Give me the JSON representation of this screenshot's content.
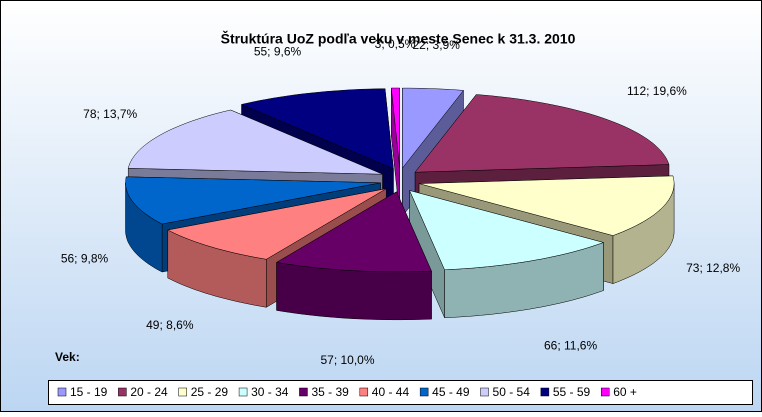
{
  "chart_data": {
    "type": "pie3d",
    "title": "Štruktúra UoZ podľa veku v meste Senec k 31.3. 2010",
    "legend_title": "Vek:",
    "categories": [
      "15 - 19",
      "20 - 24",
      "25 - 29",
      "30 - 34",
      "35 - 39",
      "40 - 44",
      "45 - 49",
      "50 - 54",
      "55 - 59",
      "60 +"
    ],
    "values": [
      22,
      112,
      73,
      66,
      57,
      49,
      56,
      78,
      55,
      3
    ],
    "value_labels": [
      "22; 3,9%",
      "112; 19,6%",
      "73; 12,8%",
      "66; 11,6%",
      "57; 10,0%",
      "49; 8,6%",
      "56; 9,8%",
      "78; 13,7%",
      "55; 9,6%",
      "3; 0,5%"
    ],
    "colors": [
      "#9999ff",
      "#993366",
      "#ffffcc",
      "#ccffff",
      "#660066",
      "#ff8080",
      "#0066cc",
      "#ccccff",
      "#000080",
      "#ff00ff"
    ],
    "legend": "bottom"
  }
}
